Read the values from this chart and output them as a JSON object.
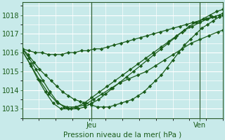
{
  "title": "Pression niveau de la mer( hPa )",
  "bg_color": "#c8eaea",
  "grid_color": "#ffffff",
  "line_color": "#1a5c1a",
  "xlim": [
    0,
    52
  ],
  "ylim": [
    1012.5,
    1018.7
  ],
  "yticks": [
    1013,
    1014,
    1015,
    1016,
    1017,
    1018
  ],
  "xtick_positions": [
    18,
    46
  ],
  "xtick_labels": [
    "Jeu",
    "Ven"
  ],
  "vlines": [
    18,
    46
  ],
  "series": [
    [
      1016.2,
      1016.1,
      1016.0,
      1016.0,
      1015.9,
      1015.9,
      1015.9,
      1016.0,
      1016.0,
      1016.1,
      1016.1,
      1016.2,
      1016.2,
      1016.3,
      1016.4,
      1016.5,
      1016.6,
      1016.7,
      1016.8,
      1016.9,
      1017.0,
      1017.1,
      1017.2,
      1017.3,
      1017.4,
      1017.5,
      1017.6,
      1017.7,
      1017.8,
      1017.9,
      1018.0,
      1018.1
    ],
    [
      1016.2,
      1015.9,
      1015.5,
      1015.1,
      1014.8,
      1014.5,
      1014.2,
      1013.9,
      1013.7,
      1013.5,
      1013.4,
      1013.3,
      1013.2,
      1013.1,
      1013.1,
      1013.1,
      1013.2,
      1013.3,
      1013.4,
      1013.5,
      1013.7,
      1013.9,
      1014.2,
      1014.5,
      1014.8,
      1015.2,
      1015.6,
      1016.0,
      1016.4,
      1016.7,
      1017.0,
      1017.3,
      1017.5,
      1017.7,
      1017.9,
      1018.0
    ],
    [
      1016.2,
      1015.7,
      1015.1,
      1014.5,
      1013.9,
      1013.4,
      1013.1,
      1013.0,
      1013.0,
      1013.1,
      1013.3,
      1013.5,
      1013.8,
      1014.1,
      1014.4,
      1014.7,
      1015.0,
      1015.3,
      1015.6,
      1015.9,
      1016.2,
      1016.5,
      1016.8,
      1017.1,
      1017.4,
      1017.6,
      1017.8,
      1018.0,
      1018.2,
      1018.3
    ],
    [
      1016.1,
      1015.4,
      1014.6,
      1013.9,
      1013.3,
      1013.0,
      1013.0,
      1013.1,
      1013.3,
      1013.6,
      1013.9,
      1014.2,
      1014.5,
      1014.8,
      1015.1,
      1015.4,
      1015.7,
      1016.0,
      1016.3,
      1016.6,
      1016.9,
      1017.2,
      1017.4,
      1017.6,
      1017.8,
      1017.9
    ],
    [
      1016.1,
      1015.3,
      1014.5,
      1013.8,
      1013.3,
      1013.1,
      1013.1,
      1013.2,
      1013.5,
      1013.8,
      1014.1,
      1014.4,
      1014.6,
      1014.8,
      1015.0,
      1015.3,
      1015.6,
      1015.9,
      1016.2,
      1016.5,
      1016.7,
      1016.9,
      1017.1,
      1017.2
    ]
  ],
  "series_x": [
    [
      0,
      1.7,
      3.4,
      5.1,
      6.8,
      8.5,
      10.2,
      11.9,
      13.6,
      15.3,
      17.0,
      18.7,
      20.4,
      22.1,
      23.8,
      25.5,
      27.2,
      28.9,
      30.6,
      32.3,
      34.0,
      35.7,
      37.4,
      39.1,
      40.8,
      42.5,
      44.2,
      45.9,
      47.6,
      49.3,
      51.0,
      52.0
    ],
    [
      0,
      1.5,
      3.0,
      4.5,
      6.0,
      7.5,
      9.0,
      10.5,
      12.0,
      13.5,
      15.0,
      16.5,
      18.0,
      19.5,
      21.0,
      22.5,
      24.0,
      25.5,
      27.0,
      28.5,
      30.0,
      31.5,
      33.0,
      34.5,
      36.0,
      37.5,
      39.0,
      40.5,
      42.0,
      43.5,
      45.0,
      46.5,
      48.0,
      49.5,
      51.0,
      52.0
    ],
    [
      0,
      1.8,
      3.6,
      5.4,
      7.2,
      9.0,
      10.8,
      12.6,
      14.4,
      16.2,
      18.0,
      19.8,
      21.6,
      23.4,
      25.2,
      27.0,
      28.8,
      30.6,
      32.4,
      34.2,
      36.0,
      37.8,
      39.6,
      41.4,
      43.2,
      45.0,
      46.8,
      48.6,
      50.4,
      52.0
    ],
    [
      0,
      2.0,
      4.0,
      6.0,
      8.0,
      10.0,
      12.0,
      14.0,
      16.0,
      18.0,
      20.0,
      22.0,
      24.0,
      26.0,
      28.0,
      30.0,
      32.0,
      34.0,
      36.0,
      38.0,
      40.0,
      42.0,
      44.0,
      46.0,
      48.0,
      50.0
    ],
    [
      0,
      2.3,
      4.6,
      6.9,
      9.2,
      11.5,
      13.8,
      16.1,
      18.4,
      20.7,
      23.0,
      25.3,
      27.6,
      29.9,
      32.2,
      34.5,
      36.8,
      39.1,
      41.4,
      43.7,
      46.0,
      48.3,
      50.6,
      52.0
    ]
  ]
}
